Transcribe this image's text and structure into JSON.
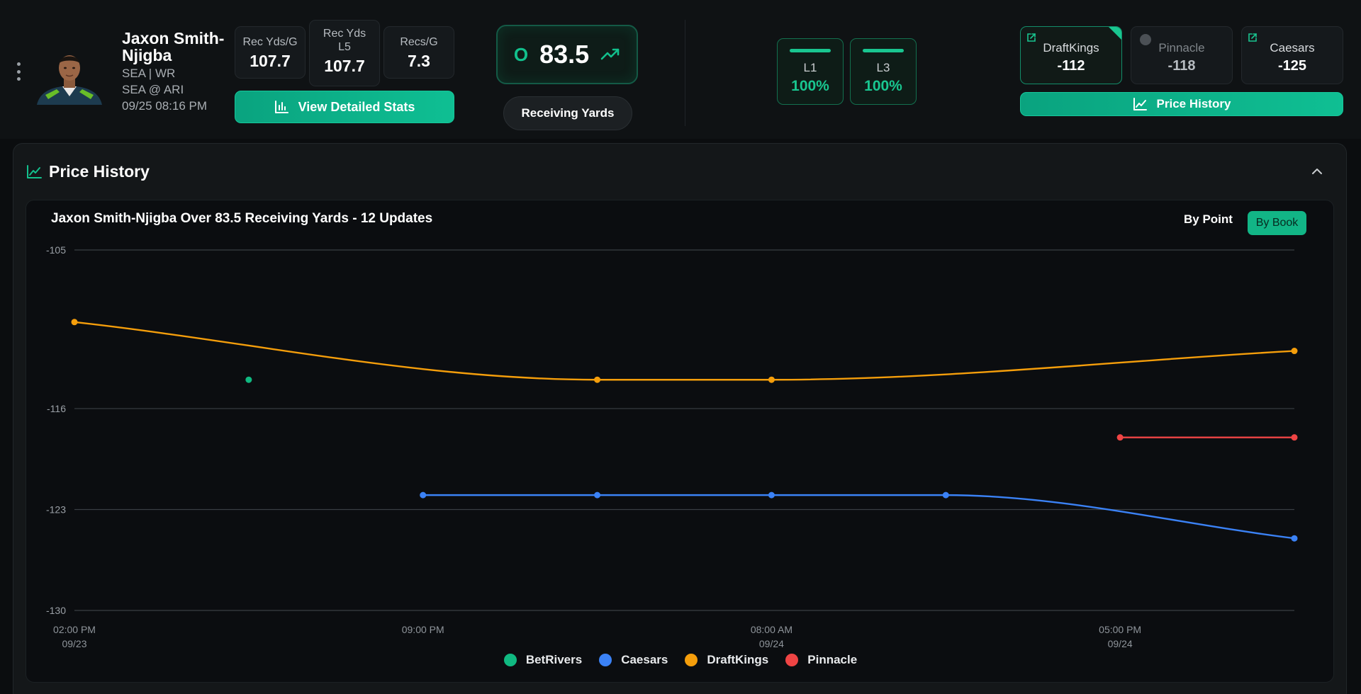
{
  "player": {
    "name": "Jaxon Smith-Njigba",
    "team_pos": "SEA | WR",
    "matchup": "SEA @ ARI",
    "datetime": "09/25 08:16 PM"
  },
  "stats": [
    {
      "label": "Rec Yds/G",
      "value": "107.7"
    },
    {
      "label": "Rec Yds L5",
      "value": "107.7"
    },
    {
      "label": "Recs/G",
      "value": "7.3"
    }
  ],
  "buttons": {
    "detailed_stats": "View Detailed Stats",
    "price_history": "Price History"
  },
  "line": {
    "side": "O",
    "number": "83.5"
  },
  "market": "Receiving Yards",
  "hit_rates": [
    {
      "label": "L1",
      "value": "100%"
    },
    {
      "label": "L3",
      "value": "100%"
    }
  ],
  "books": [
    {
      "name": "DraftKings",
      "price": "-112"
    },
    {
      "name": "Pinnacle",
      "price": "-118"
    },
    {
      "name": "Caesars",
      "price": "-125"
    }
  ],
  "panel": {
    "title": "Price History",
    "chart_title": "Jaxon Smith-Njigba Over 83.5 Receiving Yards - 12 Updates",
    "toggle_point": "By Point",
    "toggle_book": "By Book"
  },
  "colors": {
    "BetRivers": "#10b981",
    "Caesars": "#3b82f6",
    "DraftKings": "#f59e0b",
    "Pinnacle": "#ef4444"
  },
  "chart_data": {
    "type": "line",
    "title": "Jaxon Smith-Njigba Over 83.5 Receiving Yards - 12 Updates",
    "xlabel": "",
    "ylabel": "",
    "ylim": [
      -130,
      -105
    ],
    "yticks": [
      "-105",
      "-116",
      "-123",
      "-130"
    ],
    "xlim": [
      0,
      7
    ],
    "xticks": [
      {
        "x": 0,
        "time": "02:00 PM",
        "date": "09/23"
      },
      {
        "x": 2,
        "time": "09:00 PM",
        "date": ""
      },
      {
        "x": 4,
        "time": "08:00 AM",
        "date": "09/24"
      },
      {
        "x": 6,
        "time": "05:00 PM",
        "date": "09/24"
      }
    ],
    "grid": true,
    "legend": "bottom",
    "series": [
      {
        "name": "BetRivers",
        "points": [
          [
            1,
            -114
          ]
        ]
      },
      {
        "name": "Caesars",
        "points": [
          [
            2,
            -122
          ],
          [
            3,
            -122
          ],
          [
            4,
            -122
          ],
          [
            5,
            -122
          ],
          [
            7,
            -125
          ]
        ]
      },
      {
        "name": "DraftKings",
        "points": [
          [
            0,
            -110
          ],
          [
            3,
            -114
          ],
          [
            4,
            -114
          ],
          [
            7,
            -112
          ]
        ]
      },
      {
        "name": "Pinnacle",
        "points": [
          [
            6,
            -118
          ],
          [
            7,
            -118
          ]
        ]
      }
    ]
  }
}
